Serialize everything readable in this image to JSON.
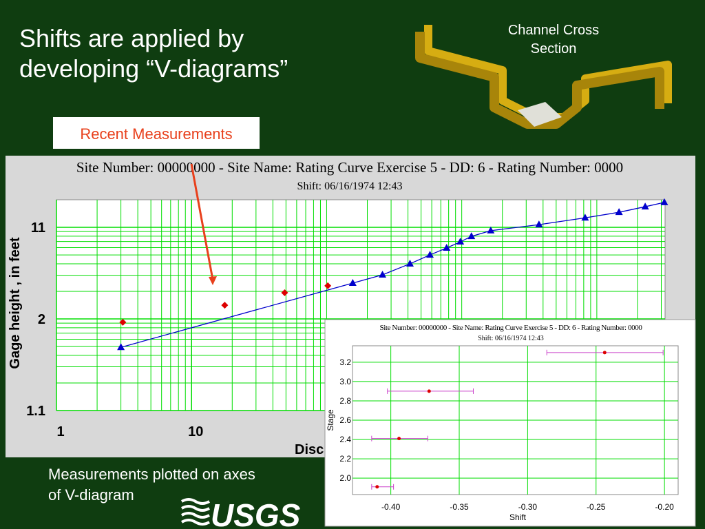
{
  "slide": {
    "title_lines": [
      "Shifts are applied by",
      "developing “V-diagrams”"
    ],
    "callout": "Recent Measurements",
    "diagram_label_lines": [
      "Channel Cross",
      "Section"
    ],
    "caption_lines": [
      "Measurements plotted on axes",
      "of V-diagram"
    ],
    "logo": "USGS"
  },
  "chart_data": [
    {
      "type": "line",
      "title": "Site Number: 00000000 - Site Name: Rating Curve Exercise 5 - DD: 6 - Rating Number: 0000",
      "subtitle": "Shift: 06/16/1974 12:43",
      "x_label": "Disc",
      "y_label": "Gage height , in feet",
      "x_log": true,
      "y_log": true,
      "y_log_offset": 1,
      "xlim": [
        1,
        32000
      ],
      "ylim": [
        1.1,
        21
      ],
      "xticks": [
        1,
        10
      ],
      "yticks": [
        1.1,
        2,
        11
      ],
      "grid": true,
      "grid_color": "#00dd00",
      "series": [
        {
          "color": "#0000cc",
          "marker": "triangle",
          "line": true,
          "x": [
            3,
            156,
            259,
            414,
            582,
            773,
            977,
            1180,
            1640,
            3730,
            8190,
            14600,
            22800,
            31600
          ],
          "values": [
            1.49,
            3.46,
            4.03,
            5.0,
            6.0,
            6.95,
            7.95,
            8.98,
            10.2,
            11.7,
            13.7,
            15.6,
            17.8,
            19.7
          ]
        },
        {
          "color": "#dd0000",
          "marker": "diamond",
          "line": false,
          "x": [
            3.1,
            17.6,
            48.9,
            102
          ],
          "values": [
            1.92,
            2.41,
            2.93,
            3.3
          ]
        }
      ]
    },
    {
      "type": "scatter",
      "title": "Site Number: 00000000 - Site Name: Rating Curve Exercise 5 - DD: 6 - Rating Number: 0000",
      "subtitle": "Shift: 06/16/1974 12:43",
      "x_label": "Shift",
      "y_label": "Stage",
      "xlim": [
        -0.428,
        -0.19
      ],
      "ylim": [
        1.83,
        3.37
      ],
      "xticks": [
        {
          "value": -0.4,
          "label": "-0.40"
        },
        {
          "value": -0.35,
          "label": "-0.35"
        },
        {
          "value": -0.3,
          "label": "-0.30"
        },
        {
          "value": -0.25,
          "label": "-0.25"
        },
        {
          "value": -0.2,
          "label": "-0.20"
        }
      ],
      "yticks": [
        {
          "value": 2,
          "label": "2.0"
        },
        2.2,
        2.4,
        2.6,
        2.8,
        {
          "value": 3,
          "label": "3.0"
        },
        3.2
      ],
      "grid": true,
      "grid_color": "#00dd00",
      "series": [
        {
          "color": "#dd0000",
          "error_color": "#cc44cc",
          "x": [
            -0.41,
            -0.394,
            -0.372,
            -0.2437
          ],
          "values": [
            1.91,
            2.41,
            2.9,
            3.3
          ],
          "x_low": [
            -0.414,
            -0.414,
            -0.4025,
            -0.286
          ],
          "x_high": [
            -0.398,
            -0.373,
            -0.3397,
            -0.201
          ]
        }
      ]
    }
  ]
}
